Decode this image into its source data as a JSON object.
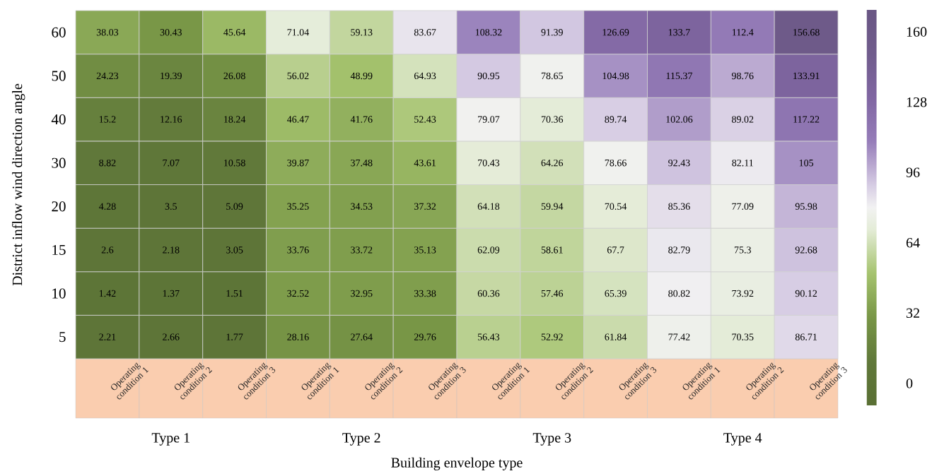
{
  "chart_data": {
    "type": "heatmap",
    "xlabel": "Building envelope type",
    "ylabel": "District inflow wind direction angle",
    "categories": [
      "Operating condition 1",
      "Operating condition 2",
      "Operating condition 3",
      "Operating condition 1",
      "Operating condition 2",
      "Operating condition 3",
      "Operating condition 1",
      "Operating condition 2",
      "Operating condition 3",
      "Operating condition 1",
      "Operating condition 2",
      "Operating condition 3"
    ],
    "y_categories": [
      "60",
      "50",
      "40",
      "30",
      "20",
      "15",
      "10",
      "5"
    ],
    "cells": [
      [
        38.03,
        30.43,
        45.64,
        71.04,
        59.13,
        83.67,
        108.32,
        91.39,
        126.69,
        133.7,
        112.4,
        156.68
      ],
      [
        24.23,
        19.39,
        26.08,
        56.02,
        48.99,
        64.93,
        90.95,
        78.65,
        104.98,
        115.37,
        98.76,
        133.91
      ],
      [
        15.2,
        12.16,
        18.24,
        46.47,
        41.76,
        52.43,
        79.07,
        70.36,
        89.74,
        102.06,
        89.02,
        117.22
      ],
      [
        8.82,
        7.07,
        10.58,
        39.87,
        37.48,
        43.61,
        70.43,
        64.26,
        78.66,
        92.43,
        82.11,
        105
      ],
      [
        4.28,
        3.5,
        5.09,
        35.25,
        34.53,
        37.32,
        64.18,
        59.94,
        70.54,
        85.36,
        77.09,
        95.98
      ],
      [
        2.6,
        2.18,
        3.05,
        33.76,
        33.72,
        35.13,
        62.09,
        58.61,
        67.7,
        82.79,
        75.3,
        92.68
      ],
      [
        1.42,
        1.37,
        1.51,
        32.52,
        32.95,
        33.38,
        60.36,
        57.46,
        65.39,
        80.82,
        73.92,
        90.12
      ],
      [
        2.21,
        2.66,
        1.77,
        28.16,
        27.64,
        29.76,
        56.43,
        52.92,
        61.84,
        77.42,
        70.35,
        86.71
      ]
    ],
    "data_labels": true,
    "clim": [
      -10,
      170
    ],
    "cticks": [
      0,
      32,
      64,
      96,
      128,
      160
    ],
    "annotations": [
      "Type 1",
      "Type 2",
      "Type 3",
      "Type 4"
    ]
  }
}
